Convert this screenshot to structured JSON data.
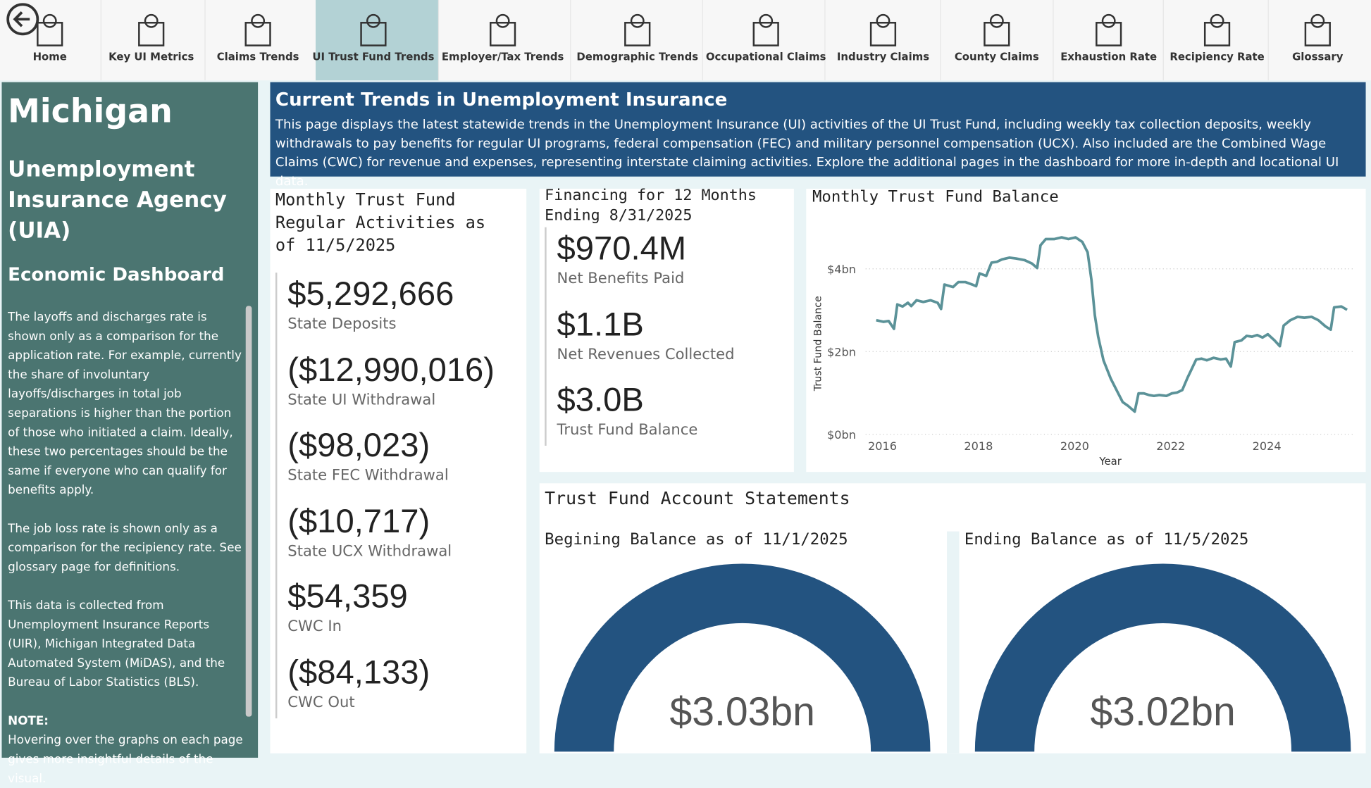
{
  "nav": [
    {
      "label": "Home"
    },
    {
      "label": "Key UI Metrics"
    },
    {
      "label": "Claims Trends"
    },
    {
      "label": "UI Trust Fund Trends",
      "active": true
    },
    {
      "label": "Employer/Tax Trends"
    },
    {
      "label": "Demographic Trends"
    },
    {
      "label": "Occupational Claims"
    },
    {
      "label": "Industry Claims"
    },
    {
      "label": "County Claims"
    },
    {
      "label": "Exhaustion Rate"
    },
    {
      "label": "Recipiency Rate"
    },
    {
      "label": "Glossary"
    }
  ],
  "sidebar": {
    "state": "Michigan",
    "agency": "Unemployment Insurance Agency (UIA)",
    "dashboard": "Economic Dashboard",
    "paragraphs": [
      "The layoffs and discharges rate is shown only as a comparison for the application rate. For example, currently the share of involuntary layoffs/discharges in total job separations is higher than the portion of those who initiated a claim. Ideally, these two percentages should be the same if everyone who can qualify for benefits apply.",
      "The job loss rate is shown only as a comparison for the recipiency rate. See glossary page for definitions.",
      "This data is collected from Unemployment Insurance Reports (UIR), Michigan Integrated Data Automated System (MiDAS), and the Bureau of Labor Statistics (BLS)."
    ],
    "note_label": "NOTE:",
    "note": "Hovering over the graphs on each page gives more insightful details of the visual."
  },
  "banner": {
    "title": "Current Trends in Unemployment Insurance",
    "text": "This page displays the latest statewide trends in the Unemployment Insurance (UI) activities of the UI Trust Fund, including weekly tax collection deposits, weekly withdrawals to pay benefits for regular UI programs, federal compensation (FEC) and military personnel compensation (UCX). Also included are the Combined Wage Claims (CWC) for revenue and expenses, representing interstate claiming activities. Explore the additional pages in the dashboard for more in-depth and locational UI data."
  },
  "monthly_activities": {
    "title": "Monthly Trust Fund Regular Activities as of 11/5/2025",
    "items": [
      {
        "value": "$5,292,666",
        "label": "State Deposits"
      },
      {
        "value": "($12,990,016)",
        "label": "State UI Withdrawal"
      },
      {
        "value": "($98,023)",
        "label": "State FEC Withdrawal"
      },
      {
        "value": "($10,717)",
        "label": "State UCX Withdrawal"
      },
      {
        "value": "$54,359",
        "label": "CWC In"
      },
      {
        "value": "($84,133)",
        "label": "CWC Out"
      }
    ]
  },
  "financing": {
    "title": "Financing for 12 Months Ending 8/31/2025",
    "items": [
      {
        "value": "$970.4M",
        "label": "Net Benefits Paid"
      },
      {
        "value": "$1.1B",
        "label": "Net Revenues Collected"
      },
      {
        "value": "$3.0B",
        "label": "Trust Fund Balance"
      }
    ]
  },
  "chart_data": {
    "type": "line",
    "title": "Monthly Trust Fund Balance",
    "x_label": "Year",
    "y_label": "Trust Fund Balance",
    "x": [
      2015.87,
      2016.02,
      2016.13,
      2016.24,
      2016.31,
      2016.42,
      2016.53,
      2016.6,
      2016.71,
      2016.85,
      2017.0,
      2017.15,
      2017.22,
      2017.29,
      2017.47,
      2017.58,
      2017.73,
      2017.87,
      2017.95,
      2018.02,
      2018.16,
      2018.27,
      2018.38,
      2018.49,
      2018.64,
      2018.78,
      2018.96,
      2019.11,
      2019.22,
      2019.29,
      2019.4,
      2019.58,
      2019.73,
      2019.87,
      2020.02,
      2020.16,
      2020.27,
      2020.35,
      2020.42,
      2020.49,
      2020.6,
      2020.75,
      2020.89,
      2021.0,
      2021.11,
      2021.25,
      2021.33,
      2021.44,
      2021.55,
      2021.65,
      2021.76,
      2021.91,
      2022.02,
      2022.13,
      2022.24,
      2022.35,
      2022.42,
      2022.53,
      2022.64,
      2022.75,
      2022.89,
      2023.04,
      2023.15,
      2023.25,
      2023.33,
      2023.47,
      2023.58,
      2023.69,
      2023.8,
      2023.91,
      2024.02,
      2024.16,
      2024.27,
      2024.35,
      2024.49,
      2024.64,
      2024.78,
      2024.93,
      2025.07,
      2025.22,
      2025.33,
      2025.4,
      2025.55,
      2025.67
    ],
    "series": [
      {
        "name": "Trust Fund Balance",
        "color": "#5b9298",
        "values": [
          2.76,
          2.72,
          2.74,
          2.55,
          3.14,
          3.09,
          3.18,
          3.1,
          3.24,
          3.2,
          3.24,
          3.18,
          3.03,
          3.62,
          3.56,
          3.68,
          3.68,
          3.62,
          3.58,
          3.89,
          3.83,
          4.15,
          4.17,
          4.23,
          4.27,
          4.25,
          4.21,
          4.13,
          4.02,
          4.57,
          4.72,
          4.72,
          4.76,
          4.72,
          4.76,
          4.65,
          4.4,
          3.73,
          2.88,
          2.36,
          1.79,
          1.35,
          1.03,
          0.78,
          0.69,
          0.55,
          0.99,
          0.99,
          0.95,
          0.93,
          0.95,
          0.93,
          0.99,
          1.01,
          1.07,
          1.37,
          1.54,
          1.81,
          1.83,
          1.79,
          1.85,
          1.81,
          1.83,
          1.64,
          2.23,
          2.27,
          2.38,
          2.36,
          2.4,
          2.34,
          2.42,
          2.27,
          2.13,
          2.63,
          2.76,
          2.84,
          2.82,
          2.84,
          2.76,
          2.61,
          2.53,
          3.07,
          3.09,
          3.01
        ]
      }
    ],
    "xlim": [
      2015.65,
      2025.84
    ],
    "xticks": [
      2016,
      2018,
      2020,
      2022,
      2024
    ],
    "ylim": [
      0,
      4.9
    ],
    "yticks": [
      {
        "value": 0,
        "label": "$0bn"
      },
      {
        "value": 2,
        "label": "$2bn"
      },
      {
        "value": 4,
        "label": "$4bn"
      }
    ],
    "grid": true
  },
  "statements": {
    "title": "Trust Fund Account Statements",
    "gauges": [
      {
        "title": "Begining Balance as of 11/1/2025",
        "value": 3.03,
        "value_label": "$3.03bn"
      },
      {
        "title": "Ending Balance as of 11/5/2025",
        "value": 3.02,
        "value_label": "$3.02bn"
      }
    ]
  }
}
